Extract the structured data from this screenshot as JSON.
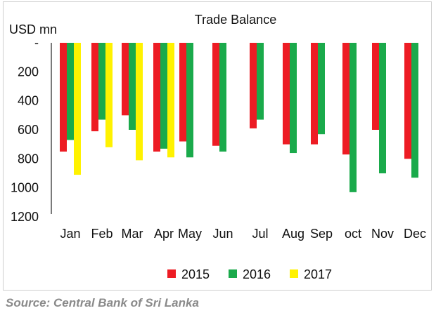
{
  "chart_data": {
    "type": "bar",
    "title": "Trade Balance",
    "ylabel": "USD mn",
    "y_inverted": true,
    "ylim": [
      0,
      1200
    ],
    "yticks": [
      {
        "value": 0,
        "label": "-"
      },
      {
        "value": 200,
        "label": "200"
      },
      {
        "value": 400,
        "label": "400"
      },
      {
        "value": 600,
        "label": "600"
      },
      {
        "value": 800,
        "label": "800"
      },
      {
        "value": 1000,
        "label": "1000"
      },
      {
        "value": 1200,
        "label": "1200"
      }
    ],
    "categories": [
      "Jan",
      "Feb",
      "Mar",
      "Apr",
      "May",
      "Jun",
      "Jul",
      "Aug",
      "Sep",
      "oct",
      "Nov",
      "Dec"
    ],
    "series": [
      {
        "name": "2015",
        "color": "#ed1c24",
        "values": [
          750,
          610,
          500,
          750,
          680,
          710,
          590,
          700,
          700,
          770,
          600,
          800
        ]
      },
      {
        "name": "2016",
        "color": "#1aaa4b",
        "values": [
          670,
          530,
          600,
          730,
          790,
          750,
          530,
          760,
          630,
          1030,
          900,
          930
        ]
      },
      {
        "name": "2017",
        "color": "#fff200",
        "values": [
          910,
          720,
          810,
          790,
          null,
          null,
          null,
          null,
          null,
          null,
          null,
          null
        ]
      }
    ],
    "legend_position": "bottom",
    "grid": false
  },
  "source": "Source: Central Bank of Sri Lanka"
}
